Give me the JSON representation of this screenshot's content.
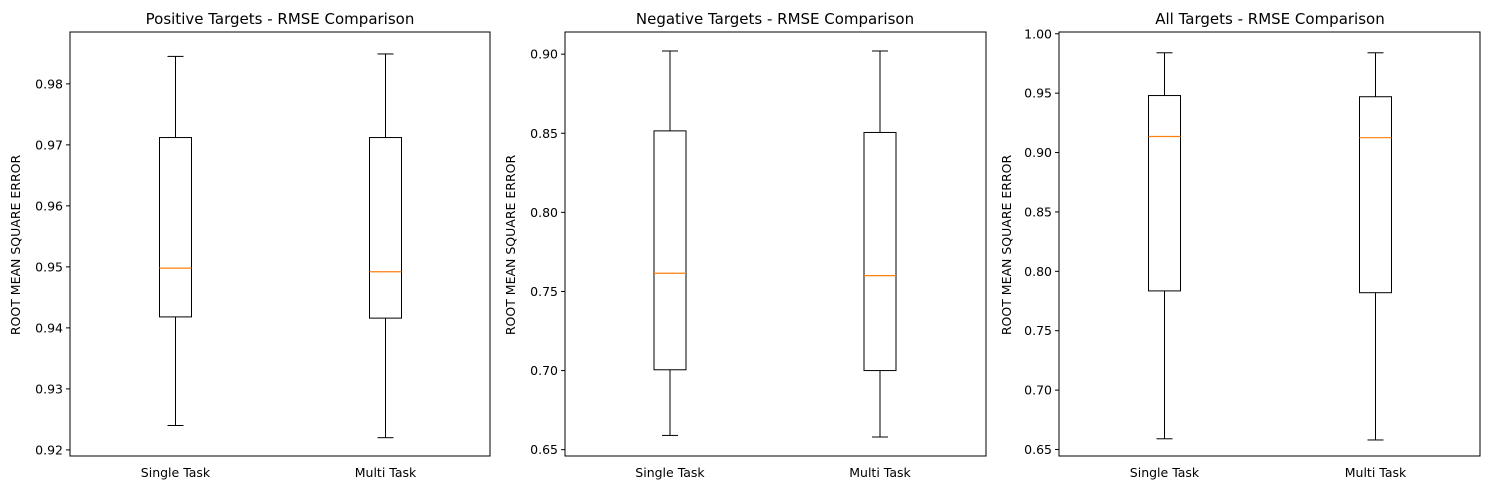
{
  "chart_data": [
    {
      "type": "box",
      "title": "Positive Targets - RMSE Comparison",
      "xlabel": "",
      "ylabel": "ROOT MEAN SQUARE ERROR",
      "categories": [
        "Single Task",
        "Multi Task"
      ],
      "ylim": [
        0.919,
        0.9885
      ],
      "yticks": [
        0.92,
        0.93,
        0.94,
        0.95,
        0.96,
        0.97,
        0.98
      ],
      "ytick_labels": [
        "0.92",
        "0.93",
        "0.94",
        "0.95",
        "0.96",
        "0.97",
        "0.98"
      ],
      "boxes": [
        {
          "min": 0.924,
          "q1": 0.9418,
          "median": 0.9498,
          "q3": 0.9712,
          "max": 0.9845
        },
        {
          "min": 0.922,
          "q1": 0.9416,
          "median": 0.9492,
          "q3": 0.9712,
          "max": 0.9849
        }
      ],
      "grid": false
    },
    {
      "type": "box",
      "title": "Negative Targets - RMSE Comparison",
      "xlabel": "",
      "ylabel": "ROOT MEAN SQUARE ERROR",
      "categories": [
        "Single Task",
        "Multi Task"
      ],
      "ylim": [
        0.646,
        0.914
      ],
      "yticks": [
        0.65,
        0.7,
        0.75,
        0.8,
        0.85,
        0.9
      ],
      "ytick_labels": [
        "0.65",
        "0.70",
        "0.75",
        "0.80",
        "0.85",
        "0.90"
      ],
      "boxes": [
        {
          "min": 0.659,
          "q1": 0.7005,
          "median": 0.7615,
          "q3": 0.8515,
          "max": 0.902
        },
        {
          "min": 0.658,
          "q1": 0.7,
          "median": 0.76,
          "q3": 0.8505,
          "max": 0.902
        }
      ],
      "grid": false
    },
    {
      "type": "box",
      "title": "All Targets - RMSE Comparison",
      "xlabel": "",
      "ylabel": "ROOT MEAN SQUARE ERROR",
      "categories": [
        "Single Task",
        "Multi Task"
      ],
      "ylim": [
        0.6445,
        1.0015
      ],
      "yticks": [
        0.65,
        0.7,
        0.75,
        0.8,
        0.85,
        0.9,
        0.95,
        1.0
      ],
      "ytick_labels": [
        "0.65",
        "0.70",
        "0.75",
        "0.80",
        "0.85",
        "0.90",
        "0.95",
        "1.00"
      ],
      "boxes": [
        {
          "min": 0.659,
          "q1": 0.7835,
          "median": 0.9135,
          "q3": 0.948,
          "max": 0.984
        },
        {
          "min": 0.658,
          "q1": 0.782,
          "median": 0.9125,
          "q3": 0.947,
          "max": 0.984
        }
      ],
      "grid": false
    }
  ],
  "colors": {
    "box_line": "#000000",
    "median_line": "#ff7f0e",
    "axes_frame": "#000000",
    "background": "#ffffff"
  }
}
